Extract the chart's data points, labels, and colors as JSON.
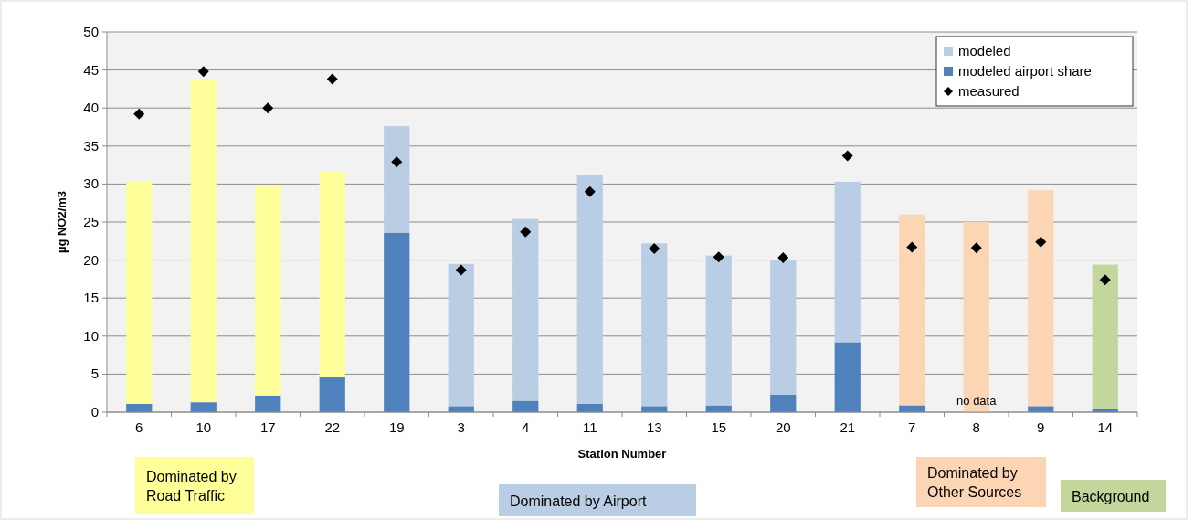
{
  "chart_data": {
    "type": "bar",
    "stacked": true,
    "xlabel": "Station Number",
    "ylabel": "µg NO2/m3",
    "categories": [
      "6",
      "10",
      "17",
      "22",
      "19",
      "3",
      "4",
      "11",
      "13",
      "15",
      "20",
      "21",
      "7",
      "8",
      "9",
      "14"
    ],
    "series": [
      {
        "name": "modeled airport share",
        "color": "#4f81bd",
        "values": [
          1.1,
          1.3,
          2.2,
          4.7,
          23.6,
          0.8,
          1.5,
          1.1,
          0.8,
          0.9,
          2.3,
          9.2,
          0.9,
          null,
          0.8,
          0.4
        ]
      },
      {
        "name": "modeled",
        "color": "#b9cde5",
        "colors": [
          "#ffff99",
          "#ffff99",
          "#ffff99",
          "#ffff99",
          "#b9cde5",
          "#b9cde5",
          "#b9cde5",
          "#b9cde5",
          "#b9cde5",
          "#b9cde5",
          "#b9cde5",
          "#b9cde5",
          "#fcd5b5",
          "#fcd5b5",
          "#fcd5b5",
          "#c3d69b"
        ],
        "values": [
          29.2,
          42.5,
          27.5,
          26.9,
          14.0,
          18.7,
          23.9,
          30.1,
          21.4,
          19.7,
          17.7,
          21.1,
          25.1,
          25.0,
          28.4,
          19.0
        ]
      },
      {
        "name": "measured",
        "type": "scatter",
        "color": "#000000",
        "marker": "diamond",
        "x": [
          "6",
          "10",
          "17",
          "22",
          "19",
          "3",
          "4",
          "11",
          "13",
          "15",
          "20",
          "21",
          "7",
          "8",
          "9",
          "14"
        ],
        "values": [
          39.2,
          44.8,
          40.0,
          43.8,
          32.9,
          18.7,
          23.7,
          29.0,
          21.5,
          20.4,
          20.3,
          33.7,
          21.7,
          21.6,
          22.4,
          17.4
        ]
      }
    ],
    "ylim": [
      0,
      50
    ],
    "yticks": [
      0,
      5,
      10,
      15,
      20,
      25,
      30,
      35,
      40,
      45,
      50
    ],
    "grid": "y",
    "legend": "top right",
    "annotations": [
      {
        "text": "no data",
        "x": "8",
        "y": 0
      },
      "Dominated by Road Traffic",
      "Dominated by Airport",
      "Dominated by Other Sources",
      "Background"
    ]
  }
}
